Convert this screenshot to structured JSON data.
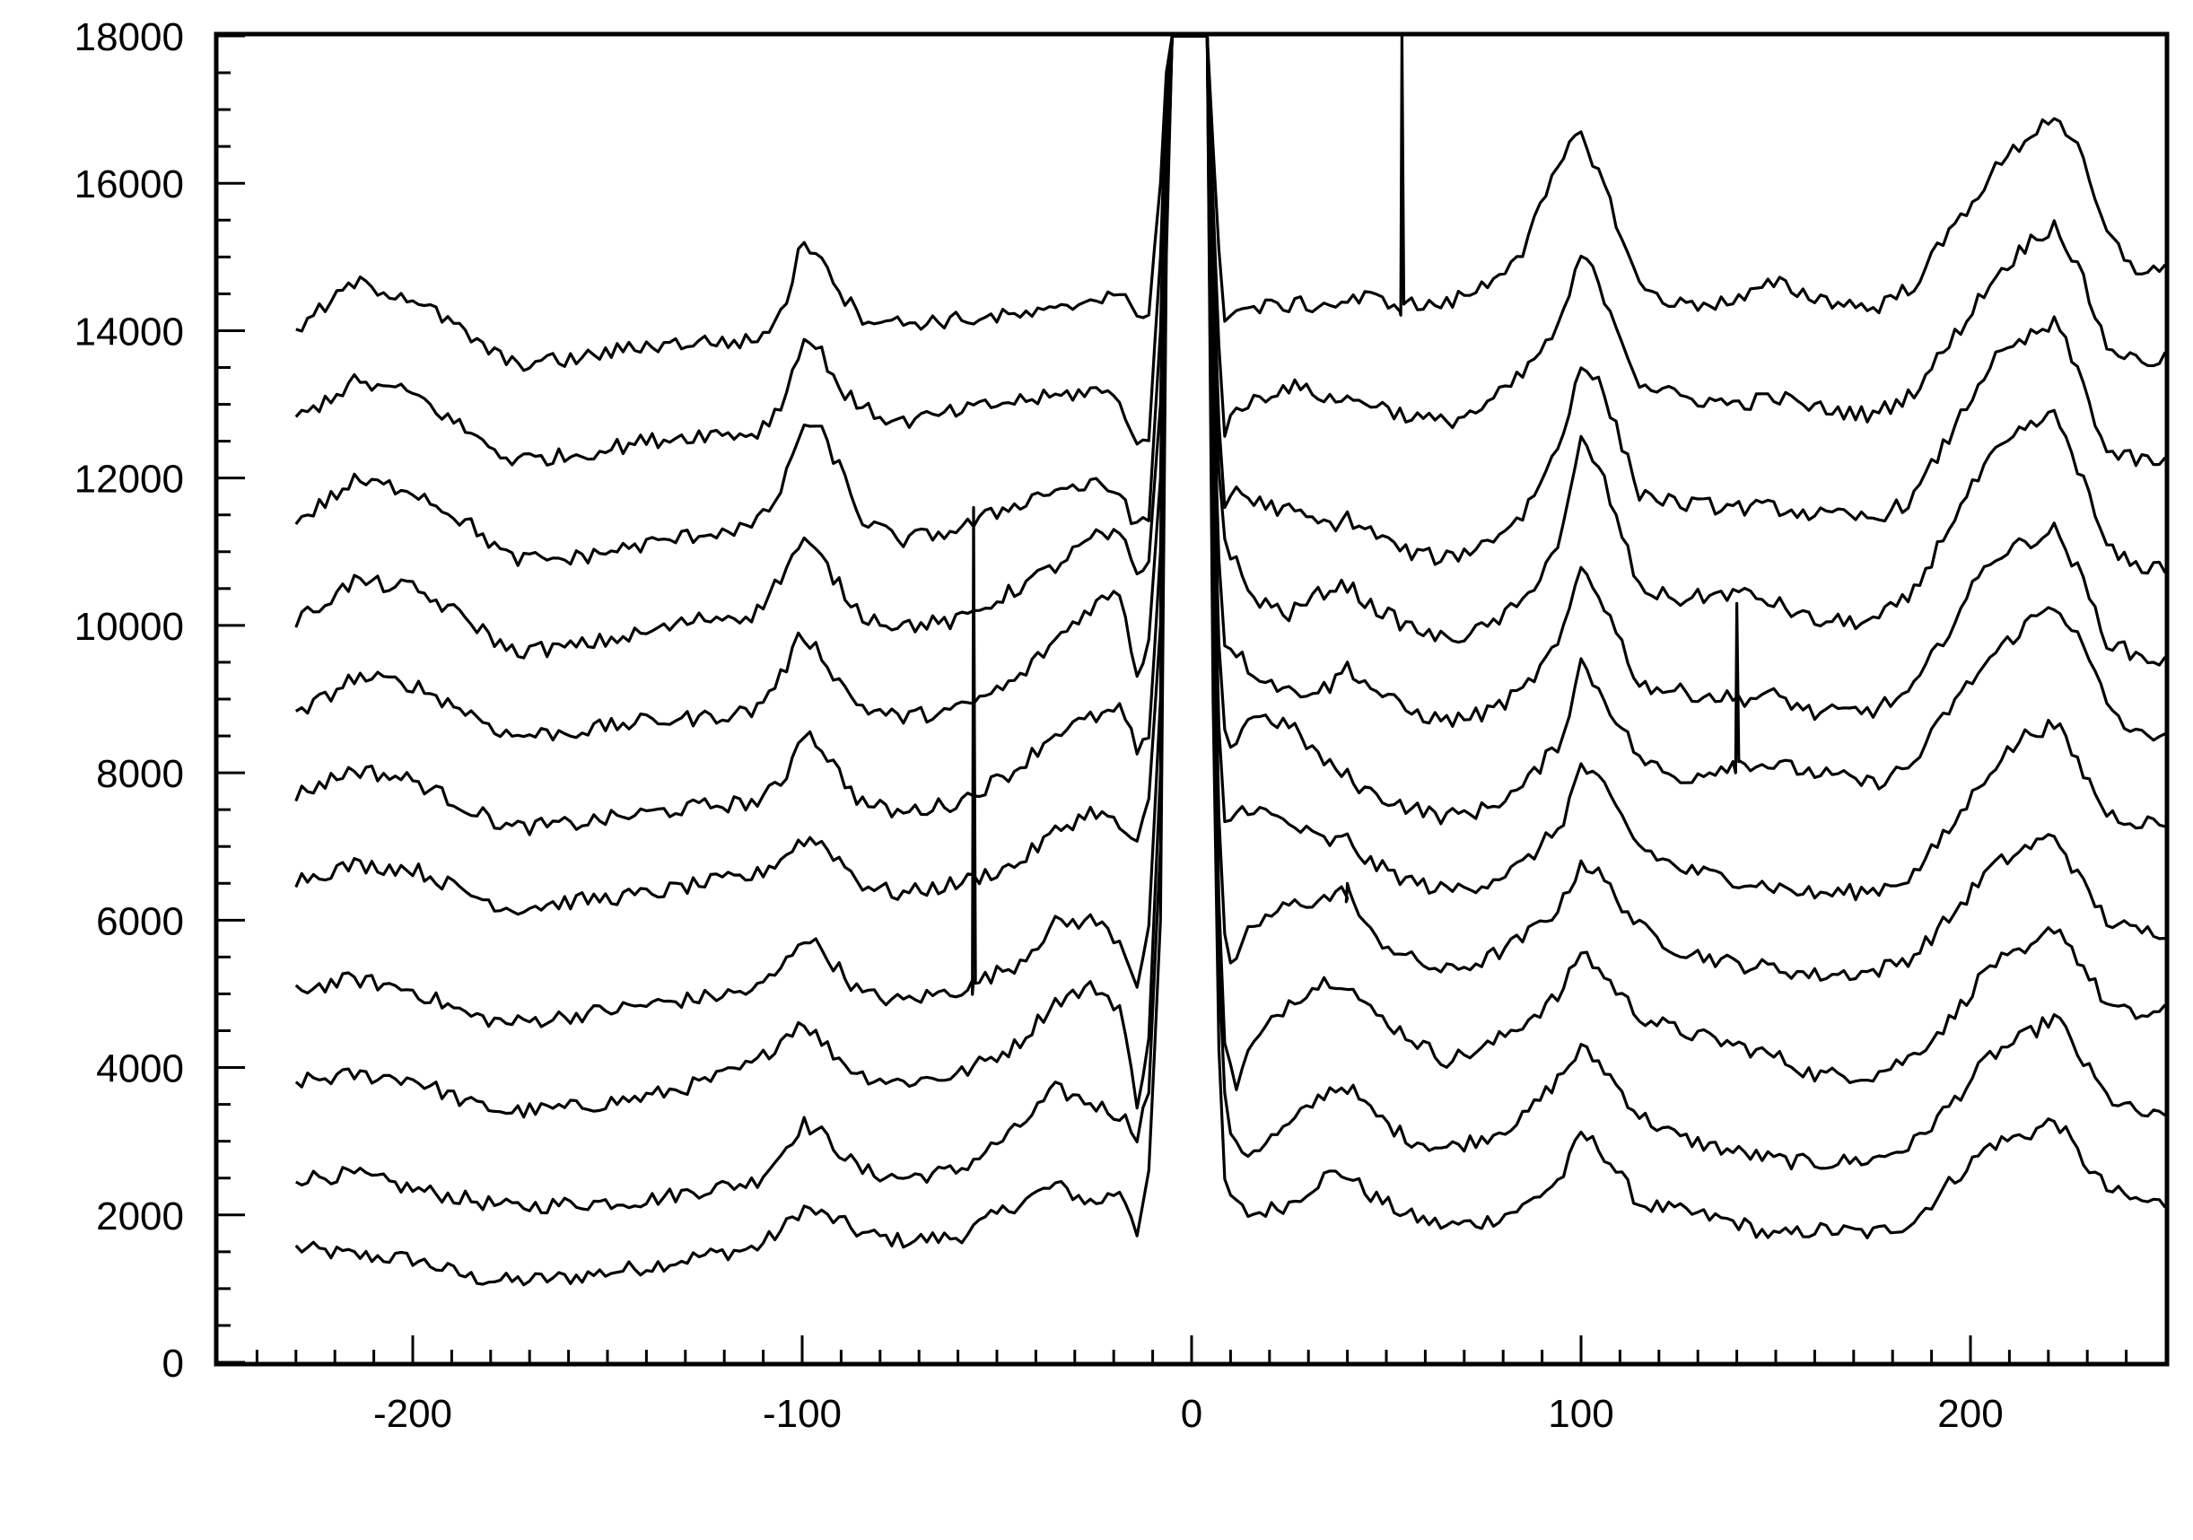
{
  "chart_data": {
    "type": "line",
    "title": "",
    "xlabel": "",
    "ylabel": "",
    "xlim": [
      -250,
      250
    ],
    "ylim": [
      0,
      18000
    ],
    "grid": false,
    "legend": "none",
    "line_color": "#000000",
    "x_ticks": [
      -200,
      -100,
      0,
      100,
      200
    ],
    "x_tick_labels": [
      "-200",
      "-100",
      "0",
      "100",
      "200"
    ],
    "x_minor_step": 10,
    "y_ticks": [
      0,
      2000,
      4000,
      6000,
      8000,
      10000,
      12000,
      14000,
      16000,
      18000
    ],
    "y_tick_labels": [
      "0",
      "2000",
      "4000",
      "6000",
      "8000",
      "10000",
      "12000",
      "14000",
      "16000",
      "18000"
    ],
    "y_minor_step": 500,
    "x": [
      -230,
      -215,
      -200,
      -185,
      -175,
      -160,
      -140,
      -125,
      -112,
      -105,
      -100,
      -95,
      -90,
      -85,
      -75,
      -60,
      -45,
      -35,
      -25,
      -18,
      -14,
      -11,
      -8,
      -6,
      0,
      4,
      6,
      8,
      11,
      15,
      25,
      35,
      40,
      45,
      55,
      65,
      75,
      85,
      95,
      100,
      105,
      115,
      125,
      140,
      150,
      160,
      175,
      185,
      195,
      205,
      215,
      222,
      228,
      235,
      242,
      250
    ],
    "series": [
      {
        "values": [
          1550,
          1450,
          1400,
          1150,
          1100,
          1150,
          1300,
          1450,
          1550,
          1800,
          2100,
          2000,
          1900,
          1750,
          1650,
          1700,
          2150,
          2400,
          2150,
          2350,
          1800,
          2500,
          6000,
          18000,
          18000,
          18000,
          6000,
          2500,
          2150,
          2000,
          2150,
          2550,
          2550,
          2300,
          2000,
          1850,
          1900,
          2100,
          2500,
          3100,
          2900,
          2150,
          2050,
          1900,
          1700,
          1800,
          1750,
          1900,
          2450,
          2950,
          3100,
          3300,
          2800,
          2350,
          2200,
          2150
        ]
      },
      {
        "values": [
          2500,
          2550,
          2350,
          2200,
          2100,
          2150,
          2200,
          2350,
          2450,
          2850,
          3250,
          3100,
          2850,
          2600,
          2500,
          2600,
          3150,
          3700,
          3500,
          3350,
          3100,
          3700,
          7000,
          18000,
          18000,
          18000,
          7000,
          3700,
          2900,
          2850,
          3200,
          3700,
          3750,
          3450,
          3050,
          2900,
          3050,
          3300,
          3900,
          4250,
          4050,
          3350,
          3050,
          2850,
          2750,
          2700,
          2750,
          2950,
          3500,
          4150,
          4450,
          4700,
          4150,
          3600,
          3400,
          3300
        ]
      },
      {
        "values": [
          3800,
          3900,
          3850,
          3500,
          3400,
          3450,
          3600,
          3800,
          4050,
          4400,
          4650,
          4350,
          4100,
          3900,
          3800,
          3900,
          4300,
          4900,
          5100,
          4800,
          3400,
          4500,
          8000,
          18000,
          18000,
          18000,
          8000,
          4500,
          3700,
          4250,
          4900,
          5200,
          5150,
          4800,
          4450,
          4100,
          4250,
          4600,
          5000,
          5600,
          5300,
          4700,
          4500,
          4300,
          4150,
          3900,
          3900,
          4150,
          4650,
          5400,
          5550,
          5950,
          5450,
          4850,
          4700,
          4750
        ]
      },
      {
        "values": [
          5050,
          5200,
          5050,
          4700,
          4600,
          4700,
          4850,
          4950,
          5050,
          5350,
          5800,
          5600,
          5300,
          5000,
          4900,
          5050,
          5400,
          5950,
          6000,
          5700,
          5150,
          5900,
          9000,
          18000,
          18000,
          18000,
          9000,
          5800,
          5300,
          5900,
          6200,
          6300,
          6400,
          5850,
          5500,
          5300,
          5450,
          5750,
          6200,
          6800,
          6600,
          5900,
          5600,
          5400,
          5350,
          5250,
          5300,
          5500,
          6050,
          6700,
          7000,
          7150,
          6550,
          6000,
          5850,
          5850
        ]
      },
      {
        "values": [
          6550,
          6750,
          6700,
          6350,
          6150,
          6250,
          6350,
          6500,
          6600,
          6850,
          7100,
          7050,
          6800,
          6500,
          6350,
          6500,
          6750,
          7200,
          7500,
          7250,
          7000,
          7600,
          10000,
          18000,
          18000,
          18000,
          10000,
          7250,
          7450,
          7550,
          7300,
          7050,
          7100,
          6800,
          6550,
          6400,
          6500,
          6750,
          7300,
          8100,
          7850,
          7000,
          6700,
          6550,
          6450,
          6350,
          6400,
          6600,
          7250,
          8050,
          8550,
          8650,
          8100,
          7450,
          7350,
          7300
        ]
      },
      {
        "values": [
          7700,
          8050,
          7900,
          7500,
          7250,
          7300,
          7450,
          7550,
          7600,
          7850,
          8600,
          8350,
          7950,
          7600,
          7450,
          7600,
          8050,
          8550,
          8750,
          8850,
          8300,
          8400,
          11000,
          18000,
          18000,
          18000,
          11000,
          8500,
          8400,
          8800,
          8650,
          8100,
          7950,
          7750,
          7550,
          7400,
          7500,
          7800,
          8450,
          9500,
          9100,
          8200,
          7900,
          8150,
          8100,
          8000,
          7850,
          8100,
          8900,
          9550,
          10050,
          10300,
          9800,
          8950,
          8500,
          8550
        ]
      },
      {
        "values": [
          8750,
          9300,
          9200,
          8800,
          8500,
          8550,
          8700,
          8750,
          8850,
          9350,
          9900,
          9600,
          9200,
          8900,
          8750,
          8850,
          9250,
          9800,
          10300,
          10450,
          9300,
          9800,
          12000,
          18000,
          18000,
          18000,
          12000,
          9800,
          9700,
          9400,
          9100,
          9150,
          9450,
          9200,
          8850,
          8700,
          8800,
          9100,
          9800,
          10800,
          10400,
          9200,
          9100,
          9000,
          9050,
          8800,
          8850,
          9100,
          10000,
          10900,
          11150,
          11300,
          10700,
          9800,
          9600,
          9500
        ]
      },
      {
        "values": [
          10050,
          10600,
          10500,
          10050,
          9650,
          9700,
          9900,
          10100,
          10150,
          10700,
          11150,
          10900,
          10500,
          10150,
          10000,
          10050,
          10500,
          10800,
          11200,
          11200,
          10700,
          10900,
          13000,
          18000,
          18000,
          18000,
          13000,
          11200,
          10900,
          10400,
          10150,
          10500,
          10550,
          10300,
          10000,
          9800,
          9950,
          10300,
          11200,
          12500,
          12100,
          10500,
          10350,
          10450,
          10300,
          10050,
          10050,
          10400,
          11400,
          12250,
          12700,
          12850,
          12100,
          11050,
          10800,
          10800
        ]
      },
      {
        "values": [
          11400,
          11950,
          11850,
          11350,
          10900,
          10900,
          11100,
          11250,
          11350,
          11850,
          12750,
          12600,
          12100,
          11450,
          11150,
          11300,
          11650,
          11850,
          11900,
          11800,
          11300,
          11450,
          14000,
          18000,
          18000,
          18000,
          14000,
          11500,
          11900,
          11700,
          11550,
          11350,
          11450,
          11300,
          11000,
          10900,
          11100,
          11500,
          12500,
          13600,
          13250,
          11800,
          11650,
          11600,
          11600,
          11500,
          11450,
          11700,
          12600,
          13550,
          13900,
          14100,
          13400,
          12350,
          12250,
          12200
        ]
      },
      {
        "values": [
          12800,
          13300,
          13150,
          12600,
          12250,
          12300,
          12500,
          12600,
          12600,
          13000,
          13900,
          13700,
          13200,
          12950,
          12750,
          12900,
          13050,
          13100,
          13200,
          13050,
          12400,
          12600,
          15000,
          18000,
          18000,
          18000,
          15000,
          12600,
          12850,
          13050,
          13250,
          13100,
          13050,
          13050,
          12850,
          12750,
          12950,
          13400,
          14100,
          15050,
          14600,
          13300,
          13100,
          13000,
          13100,
          12950,
          12850,
          13150,
          13850,
          14650,
          15200,
          15450,
          14800,
          13800,
          13600,
          13600
        ]
      },
      {
        "values": [
          14000,
          14650,
          14450,
          13900,
          13550,
          13600,
          13800,
          13850,
          13850,
          14250,
          15200,
          15050,
          14500,
          14200,
          14100,
          14150,
          14200,
          14250,
          14450,
          14550,
          14100,
          14300,
          16000,
          18000,
          18000,
          18000,
          16000,
          14200,
          14250,
          14300,
          14350,
          14350,
          14400,
          14450,
          14350,
          14350,
          14600,
          15100,
          16300,
          16700,
          16100,
          14600,
          14350,
          14400,
          14650,
          14450,
          14300,
          14600,
          15350,
          16100,
          16650,
          16950,
          16400,
          15300,
          14850,
          14800
        ]
      }
    ],
    "spikes": [
      {
        "series_index": 3,
        "x": -56,
        "peak": 11600
      },
      {
        "series_index": 10,
        "x": 54,
        "peak": 18000
      },
      {
        "series_index": 5,
        "x": 140,
        "peak": 10300
      },
      {
        "series_index": 3,
        "x": 40,
        "peak": 6500
      }
    ]
  }
}
